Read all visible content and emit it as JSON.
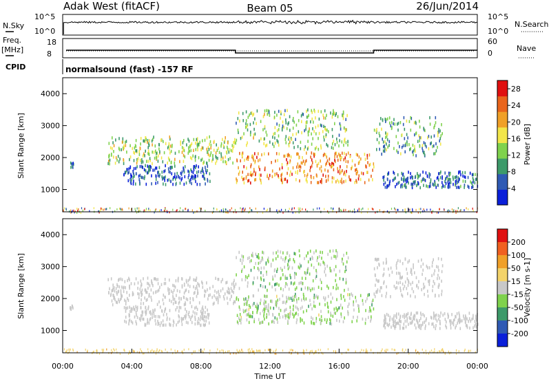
{
  "header": {
    "station": "Adak West (fitACF)",
    "beam": "Beam 05",
    "date": "26/Jun/2014"
  },
  "noise_panel": {
    "left_label": "N.Sky",
    "right_label": "N.Search",
    "left_ticks": [
      "10^5",
      "10^0"
    ],
    "right_ticks": [
      "10^5",
      "10^0"
    ]
  },
  "freq_panel": {
    "left_label_line1": "Freq.",
    "left_label_line2": "[MHz]",
    "right_label": "Nave",
    "left_ticks": [
      "18",
      "8"
    ],
    "right_ticks": [
      "60",
      "0"
    ]
  },
  "cpid": {
    "label": "CPID",
    "text": "normalsound (fast) -157 RF"
  },
  "colors": {
    "power_scale": [
      "#0a1fd9",
      "#2f5ab4",
      "#3d9a6a",
      "#7fd24d",
      "#f2e64a",
      "#f0a028",
      "#e9651c",
      "#e01010"
    ],
    "velocity_scale": [
      "#e01010",
      "#f06020",
      "#f0a028",
      "#f3d36a",
      "#c8c8c8",
      "#7fd24d",
      "#3d9a6a",
      "#2f5ab4",
      "#0a1fd9"
    ],
    "ground_scatter": "#c8c8c8"
  },
  "chart_data": [
    {
      "type": "heatmap",
      "panel": "power",
      "ylabel": "Slant Range [km]",
      "ylim": [
        300,
        4500
      ],
      "yticks": [
        "1000",
        "2000",
        "3000",
        "4000"
      ],
      "xlim": [
        "00:00",
        "24:00"
      ],
      "colorbar": {
        "label": "Power [dB]",
        "ticks": [
          "4",
          "8",
          "12",
          "16",
          "20",
          "24",
          "28"
        ],
        "range": [
          0,
          30
        ]
      },
      "echo_bands": [
        {
          "name": "band-a",
          "t_start": 0.4,
          "t_end": 0.6,
          "r_low": 1700,
          "r_high": 1900,
          "power": 6
        },
        {
          "name": "band-b",
          "t_start": 2.6,
          "t_end": 10.0,
          "r_low": 1850,
          "r_high": 2700,
          "power": 14
        },
        {
          "name": "band-c",
          "t_start": 3.5,
          "t_end": 8.5,
          "r_low": 1200,
          "r_high": 1800,
          "power": 5
        },
        {
          "name": "band-d",
          "t_start": 10.0,
          "t_end": 18.0,
          "r_low": 1250,
          "r_high": 2200,
          "power": 22
        },
        {
          "name": "band-e",
          "t_start": 10.0,
          "t_end": 16.5,
          "r_low": 2300,
          "r_high": 3550,
          "power": 13
        },
        {
          "name": "band-f",
          "t_start": 18.0,
          "t_end": 22.0,
          "r_low": 2100,
          "r_high": 3300,
          "power": 10
        },
        {
          "name": "band-g",
          "t_start": 18.5,
          "t_end": 24.0,
          "r_low": 1100,
          "r_high": 1600,
          "power": 6
        }
      ]
    },
    {
      "type": "heatmap",
      "panel": "velocity",
      "ylabel": "Slant Range [km]",
      "xlabel": "Time UT",
      "ylim": [
        300,
        4500
      ],
      "yticks": [
        "1000",
        "2000",
        "3000",
        "4000"
      ],
      "xticks": [
        "00:00",
        "04:00",
        "08:00",
        "12:00",
        "16:00",
        "20:00",
        "00:00"
      ],
      "colorbar": {
        "label": "Velocity [m s-1]",
        "ticks": [
          "200",
          "100",
          "50",
          "15",
          "-15",
          "-50",
          "-100",
          "-200"
        ],
        "range": [
          -250,
          250
        ]
      },
      "echo_bands": [
        {
          "name": "band-a",
          "t_start": 0.4,
          "t_end": 0.6,
          "r_low": 1700,
          "r_high": 1900,
          "velocity": 0
        },
        {
          "name": "band-b",
          "t_start": 2.6,
          "t_end": 10.0,
          "r_low": 1850,
          "r_high": 2700,
          "velocity": 0
        },
        {
          "name": "band-c",
          "t_start": 3.5,
          "t_end": 8.5,
          "r_low": 1200,
          "r_high": 1800,
          "velocity": 0
        },
        {
          "name": "band-d",
          "t_start": 10.0,
          "t_end": 18.0,
          "r_low": 1250,
          "r_high": 2200,
          "velocity": -30
        },
        {
          "name": "band-e",
          "t_start": 10.0,
          "t_end": 16.5,
          "r_low": 2300,
          "r_high": 3550,
          "velocity": -40
        },
        {
          "name": "band-f",
          "t_start": 18.0,
          "t_end": 22.0,
          "r_low": 2100,
          "r_high": 3300,
          "velocity": 0
        },
        {
          "name": "band-g",
          "t_start": 18.5,
          "t_end": 24.0,
          "r_low": 1100,
          "r_high": 1600,
          "velocity": 0
        }
      ]
    },
    {
      "type": "line",
      "panel": "frequency",
      "ylabel": "Freq. [MHz]",
      "ylim": [
        8,
        18
      ],
      "segments": [
        {
          "t_start": 0.0,
          "t_end": 10.0,
          "value": 12.5
        },
        {
          "t_start": 10.0,
          "t_end": 18.0,
          "value": 10.5
        },
        {
          "t_start": 18.0,
          "t_end": 24.0,
          "value": 12.5
        }
      ]
    },
    {
      "type": "line",
      "panel": "noise",
      "ylabel": "N.Sky",
      "ylim": [
        0,
        5
      ],
      "level": 3.2
    }
  ]
}
